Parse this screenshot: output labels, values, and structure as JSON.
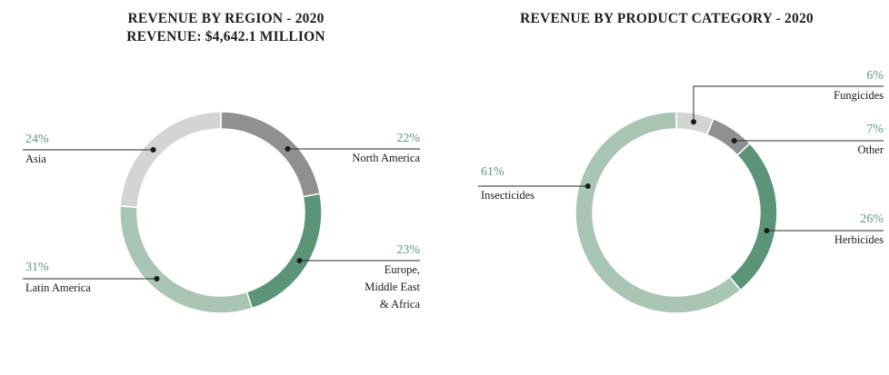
{
  "colors": {
    "dark_green": "#5c9478",
    "light_green": "#a9c5b3",
    "light_gray": "#d3d4d4",
    "dark_gray": "#8f9090",
    "pct_text": "#5a9a78"
  },
  "chart_data": [
    {
      "type": "pie",
      "variant": "donut",
      "title": "REVENUE BY REGION - 2020",
      "subtitle": "REVENUE: $4,642.1 MILLION",
      "slices": [
        {
          "label": [
            "North America"
          ],
          "value": 22,
          "pct_label": "22%",
          "color": "#8f9090"
        },
        {
          "label": [
            "Europe,",
            "Middle East",
            "& Africa"
          ],
          "value": 23,
          "pct_label": "23%",
          "color": "#5c9478"
        },
        {
          "label": [
            "Latin America"
          ],
          "value": 31,
          "pct_label": "31%",
          "color": "#a9c5b3"
        },
        {
          "label": [
            "Asia"
          ],
          "value": 24,
          "pct_label": "24%",
          "color": "#d3d4d4"
        }
      ]
    },
    {
      "type": "pie",
      "variant": "donut",
      "title": "REVENUE BY PRODUCT CATEGORY - 2020",
      "subtitle": "",
      "slices": [
        {
          "label": [
            "Fungicides"
          ],
          "value": 6,
          "pct_label": "6%",
          "color": "#d3d4d4"
        },
        {
          "label": [
            "Other"
          ],
          "value": 7,
          "pct_label": "7%",
          "color": "#8f9090"
        },
        {
          "label": [
            "Herbicides"
          ],
          "value": 26,
          "pct_label": "26%",
          "color": "#5c9478"
        },
        {
          "label": [
            "Insecticides"
          ],
          "value": 61,
          "pct_label": "61%",
          "color": "#a9c5b3"
        }
      ]
    }
  ]
}
